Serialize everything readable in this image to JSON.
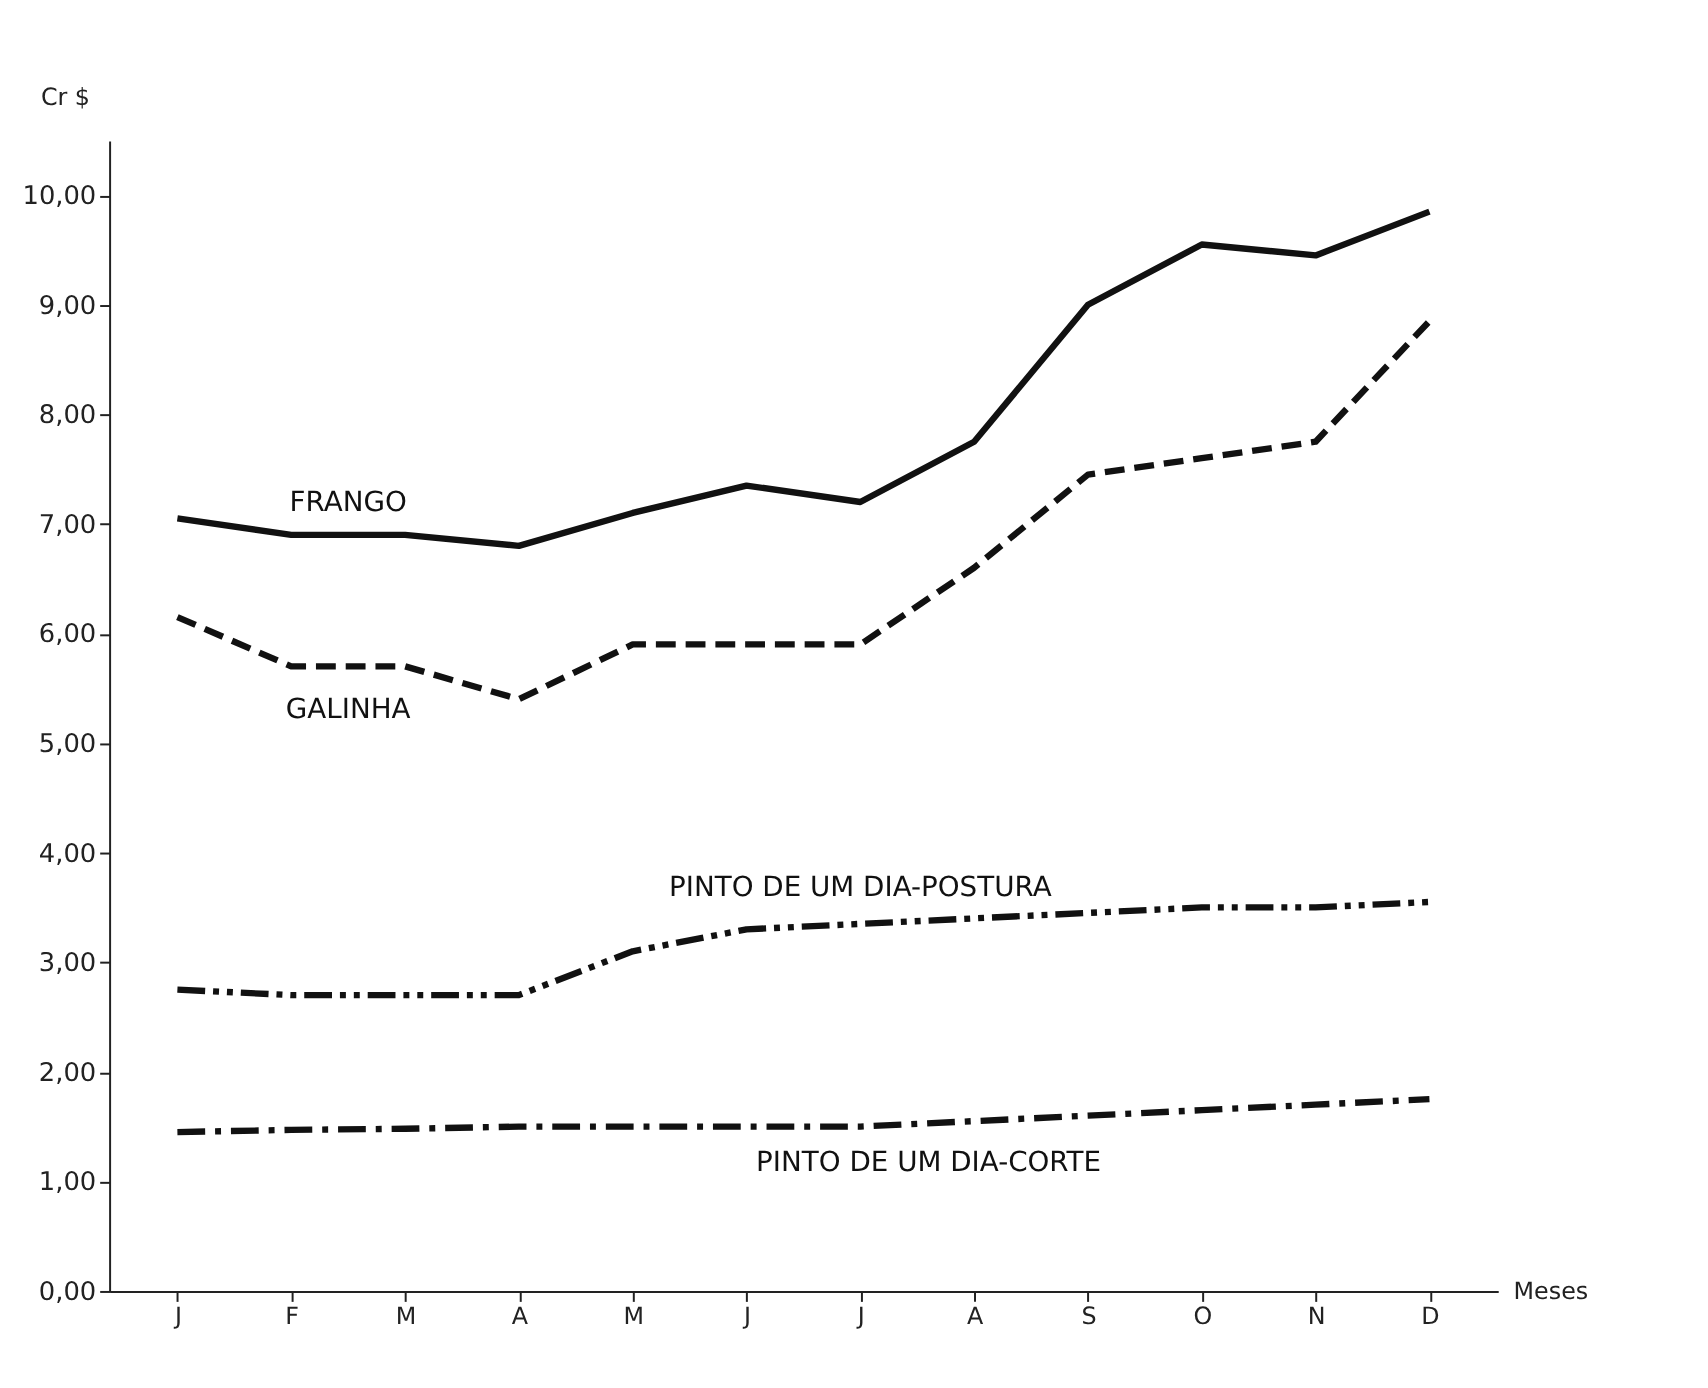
{
  "chart_data": {
    "type": "line",
    "xlabel": "Meses",
    "ylabel": "Cr $",
    "categories": [
      "J",
      "F",
      "M",
      "A",
      "M",
      "J",
      "J",
      "A",
      "S",
      "O",
      "N",
      "D"
    ],
    "ylim": [
      0,
      10.5
    ],
    "yticks": [
      {
        "value": 0,
        "label": "0,00"
      },
      {
        "value": 1,
        "label": "1,00"
      },
      {
        "value": 2,
        "label": "2,00"
      },
      {
        "value": 3,
        "label": "3,00"
      },
      {
        "value": 4,
        "label": "4,00"
      },
      {
        "value": 5,
        "label": "5,00"
      },
      {
        "value": 6,
        "label": "6,00"
      },
      {
        "value": 7,
        "label": "7,00"
      },
      {
        "value": 8,
        "label": "8,00"
      },
      {
        "value": 9,
        "label": "9,00"
      },
      {
        "value": 10,
        "label": "10,00"
      }
    ],
    "grid": false,
    "legend": false,
    "marker": "none",
    "series": [
      {
        "name": "FRANGO",
        "color": "#111111",
        "line_style": "solid",
        "values": [
          7.05,
          6.9,
          6.9,
          6.8,
          7.1,
          7.35,
          7.2,
          7.75,
          9.0,
          9.55,
          9.45,
          9.85
        ]
      },
      {
        "name": "GALINHA",
        "color": "#111111",
        "line_style": "dashed",
        "values": [
          6.15,
          5.7,
          5.7,
          5.4,
          5.9,
          5.9,
          5.9,
          6.6,
          7.45,
          7.6,
          7.75,
          8.85
        ]
      },
      {
        "name": "PINTO DE UM DIA-POSTURA",
        "color": "#111111",
        "line_style": "dashdotdot",
        "values": [
          2.75,
          2.7,
          2.7,
          2.7,
          3.1,
          3.3,
          3.35,
          3.4,
          3.45,
          3.5,
          3.5,
          3.55
        ]
      },
      {
        "name": "PINTO DE UM DIA-CORTE",
        "color": "#111111",
        "line_style": "dashdot",
        "values": [
          1.45,
          1.47,
          1.48,
          1.5,
          1.5,
          1.5,
          1.5,
          1.55,
          1.6,
          1.65,
          1.7,
          1.75
        ]
      }
    ]
  }
}
